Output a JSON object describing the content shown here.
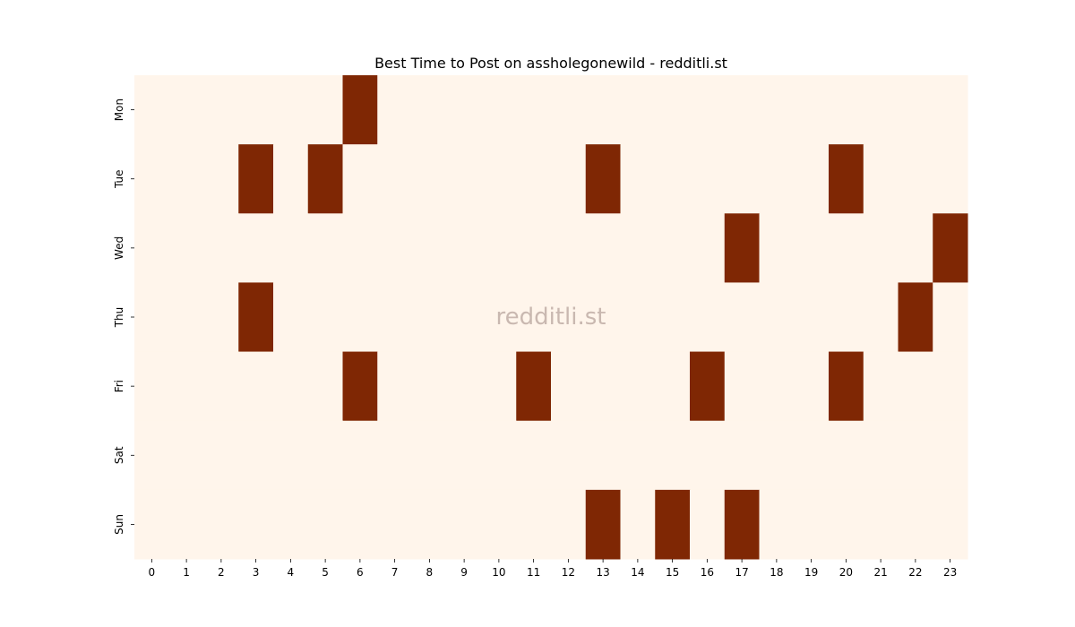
{
  "chart_data": {
    "type": "heatmap",
    "title": "Best Time to Post on assholegonewild - redditli.st",
    "watermark": "redditli.st",
    "x_labels": [
      "0",
      "1",
      "2",
      "3",
      "4",
      "5",
      "6",
      "7",
      "8",
      "9",
      "10",
      "11",
      "12",
      "13",
      "14",
      "15",
      "16",
      "17",
      "18",
      "19",
      "20",
      "21",
      "22",
      "23"
    ],
    "y_labels": [
      "Mon",
      "Tue",
      "Wed",
      "Thu",
      "Fri",
      "Sat",
      "Sun"
    ],
    "xlabel": "",
    "ylabel": "",
    "grid": false,
    "colors": {
      "low": "#fff5eb",
      "high": "#7f2704"
    },
    "values": [
      [
        0,
        0,
        0,
        0,
        0,
        0,
        1,
        0,
        0,
        0,
        0,
        0,
        0,
        0,
        0,
        0,
        0,
        0,
        0,
        0,
        0,
        0,
        0,
        0
      ],
      [
        0,
        0,
        0,
        1,
        0,
        1,
        0,
        0,
        0,
        0,
        0,
        0,
        0,
        1,
        0,
        0,
        0,
        0,
        0,
        0,
        1,
        0,
        0,
        0
      ],
      [
        0,
        0,
        0,
        0,
        0,
        0,
        0,
        0,
        0,
        0,
        0,
        0,
        0,
        0,
        0,
        0,
        0,
        1,
        0,
        0,
        0,
        0,
        0,
        1
      ],
      [
        0,
        0,
        0,
        1,
        0,
        0,
        0,
        0,
        0,
        0,
        0,
        0,
        0,
        0,
        0,
        0,
        0,
        0,
        0,
        0,
        0,
        0,
        1,
        0
      ],
      [
        0,
        0,
        0,
        0,
        0,
        0,
        1,
        0,
        0,
        0,
        0,
        1,
        0,
        0,
        0,
        0,
        1,
        0,
        0,
        0,
        1,
        0,
        0,
        0
      ],
      [
        0,
        0,
        0,
        0,
        0,
        0,
        0,
        0,
        0,
        0,
        0,
        0,
        0,
        0,
        0,
        0,
        0,
        0,
        0,
        0,
        0,
        0,
        0,
        0
      ],
      [
        0,
        0,
        0,
        0,
        0,
        0,
        0,
        0,
        0,
        0,
        0,
        0,
        0,
        1,
        0,
        1,
        0,
        1,
        0,
        0,
        0,
        0,
        0,
        0
      ]
    ]
  }
}
